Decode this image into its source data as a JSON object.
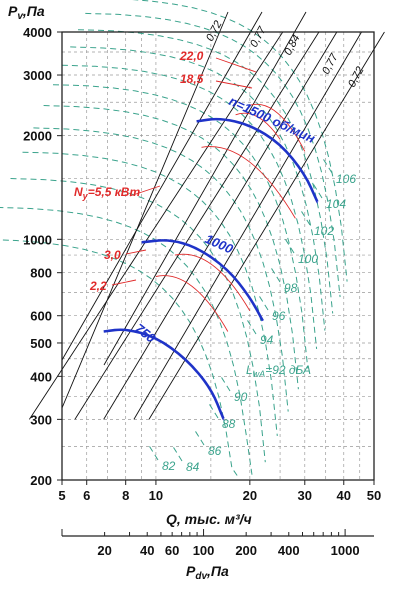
{
  "chart_data": {
    "type": "line",
    "ylabel_main": "P",
    "ylabel_sub": "v",
    "ylabel_unit": ",Па",
    "xlabel": "Q, тыс. м³/ч",
    "x2label_main": "P",
    "x2label_sub": "dv",
    "x2label_unit": ",Па",
    "x_scale": "log",
    "y_scale": "log",
    "xlim": [
      5,
      50
    ],
    "ylim": [
      200,
      4000
    ],
    "x_ticks": [
      "5",
      "6",
      "8",
      "10",
      "20",
      "30",
      "40",
      "50"
    ],
    "y_ticks": [
      "4000",
      "3000",
      "2000",
      "1000",
      "800",
      "600",
      "500",
      "400",
      "300",
      "200"
    ],
    "pdv_ticks": [
      "20",
      "40",
      "60",
      "100",
      "200",
      "400",
      "1000"
    ],
    "grid": true,
    "speed_curves": [
      {
        "name": "n=1500 об/мин",
        "x": [
          13.5,
          16,
          20,
          25,
          30,
          33
        ],
        "y": [
          2200,
          2250,
          2150,
          1900,
          1550,
          1280
        ]
      },
      {
        "name": "1000",
        "x": [
          9,
          11,
          13.5,
          17,
          20,
          22
        ],
        "y": [
          980,
          1000,
          950,
          820,
          680,
          580
        ]
      },
      {
        "name": "750",
        "x": [
          6.8,
          8,
          10,
          12.5,
          15,
          16.5
        ],
        "y": [
          540,
          550,
          520,
          450,
          370,
          300
        ]
      }
    ],
    "efficiency_lines": [
      {
        "name": "0,72",
        "x": [
          3.93,
          25.5
        ],
        "y": [
          300,
          4000
        ]
      },
      {
        "name": "0,77",
        "x": [
          5.5,
          33.3
        ],
        "y": [
          300,
          4000
        ]
      },
      {
        "name": "0,84",
        "x": [
          6.8,
          38
        ],
        "y": [
          300,
          4000
        ]
      },
      {
        "name": "0,77",
        "x": [
          8.5,
          45.6
        ],
        "y": [
          300,
          4000
        ]
      },
      {
        "name": "0,72",
        "x": [
          9.5,
          54
        ],
        "y": [
          300,
          4000
        ]
      }
    ],
    "power_labels": [
      "22,0",
      "18,5",
      "N",
      "у",
      "=5,5 кВт",
      "3,0",
      "2,2"
    ],
    "power_lines": [
      {
        "name": "22,0",
        "x": [
          20,
          30
        ],
        "y": [
          2450,
          1800
        ]
      },
      {
        "name": "18,5",
        "x": [
          18,
          25
        ],
        "y": [
          2300,
          1950
        ]
      },
      {
        "name": "5,5",
        "x": [
          14,
          28
        ],
        "y": [
          1850,
          1150
        ]
      },
      {
        "name": "3,0",
        "x": [
          11.5,
          20
        ],
        "y": [
          900,
          620
        ]
      },
      {
        "name": "2,2",
        "x": [
          10,
          17
        ],
        "y": [
          780,
          540
        ]
      }
    ],
    "noise_labels": [
      "106",
      "104",
      "102",
      "100",
      "98",
      "96",
      "94",
      "L",
      "wA",
      "=92 дБА",
      "90",
      "88",
      "86",
      "84",
      "82"
    ]
  }
}
